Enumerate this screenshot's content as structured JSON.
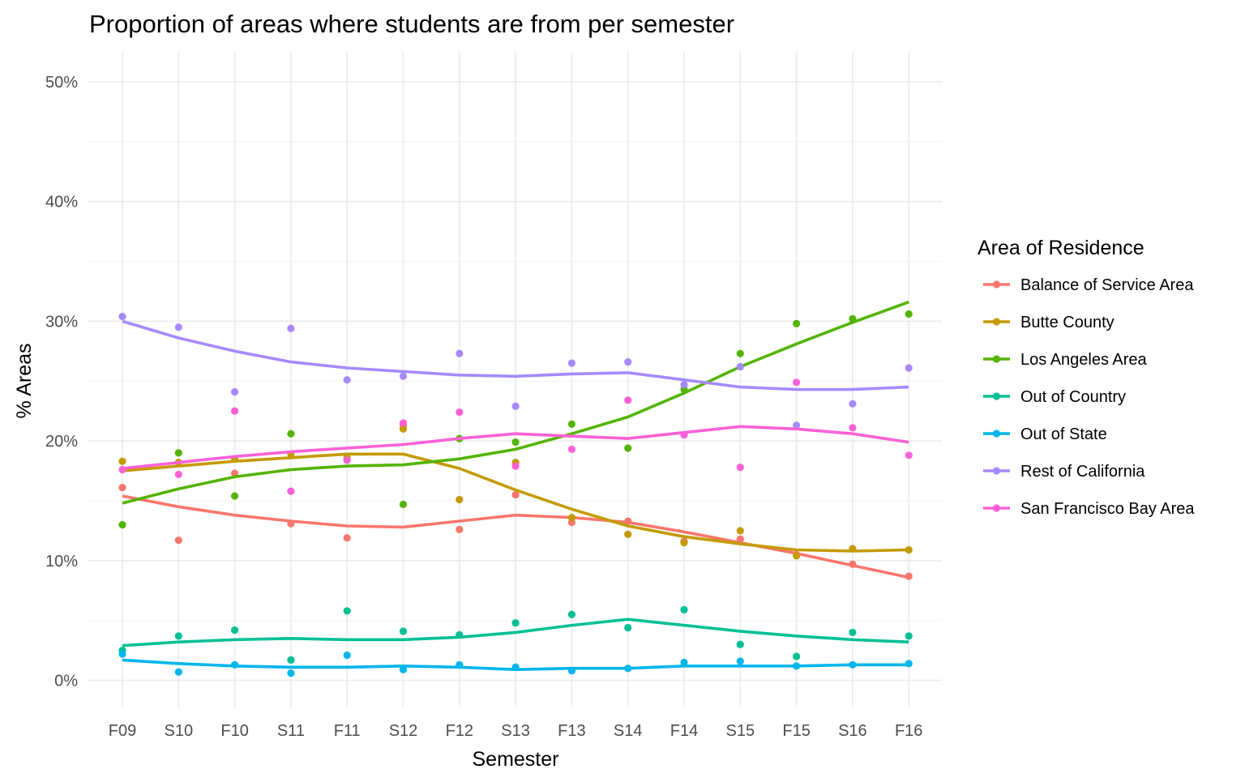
{
  "chart_data": {
    "type": "line",
    "title": "Proportion of areas where students are from per semester",
    "xlabel": "Semester",
    "ylabel": "% Areas",
    "categories": [
      "F09",
      "S10",
      "F10",
      "S11",
      "F11",
      "S12",
      "F12",
      "S13",
      "F13",
      "S14",
      "F14",
      "S15",
      "F15",
      "S16",
      "F16"
    ],
    "ylim": [
      -2.2,
      52.5
    ],
    "yticks": [
      0,
      10,
      20,
      30,
      40,
      50
    ],
    "ytick_labels": [
      "0%",
      "10%",
      "20%",
      "30%",
      "40%",
      "50%"
    ],
    "grid": true,
    "legend": {
      "title": "Area of Residence",
      "position": "right"
    },
    "series": [
      {
        "name": "Balance of Service Area",
        "color": "#F8766D",
        "points": [
          16.1,
          11.7,
          17.3,
          13.1,
          11.9,
          21.3,
          12.6,
          15.5,
          13.2,
          13.3,
          11.6,
          11.8,
          10.5,
          9.7,
          8.7
        ],
        "trend": [
          15.4,
          14.5,
          13.8,
          13.3,
          12.9,
          12.8,
          13.3,
          13.8,
          13.6,
          13.2,
          12.4,
          11.5,
          10.6,
          9.6,
          8.6
        ]
      },
      {
        "name": "Butte County",
        "color": "#C49A00",
        "points": [
          18.3,
          18.2,
          18.5,
          18.9,
          18.6,
          21.0,
          15.1,
          18.2,
          13.6,
          12.2,
          11.5,
          12.5,
          10.4,
          11.0,
          10.9
        ],
        "trend": [
          17.5,
          17.9,
          18.3,
          18.6,
          18.9,
          18.9,
          17.7,
          15.9,
          14.3,
          12.9,
          12.0,
          11.4,
          10.9,
          10.8,
          10.9
        ]
      },
      {
        "name": "Los Angeles Area",
        "color": "#53B400",
        "points": [
          13.0,
          19.0,
          15.4,
          20.6,
          18.4,
          14.7,
          20.2,
          19.9,
          21.4,
          19.4,
          24.3,
          27.3,
          29.8,
          30.2,
          30.6
        ],
        "trend": [
          14.8,
          16.0,
          17.0,
          17.6,
          17.9,
          18.0,
          18.5,
          19.3,
          20.6,
          22.0,
          24.0,
          26.2,
          28.1,
          29.9,
          31.6
        ]
      },
      {
        "name": "Out of Country",
        "color": "#00C094",
        "points": [
          2.5,
          3.7,
          4.2,
          1.7,
          5.8,
          4.1,
          3.8,
          4.8,
          5.5,
          4.4,
          5.9,
          3.0,
          2.0,
          4.0,
          3.7
        ],
        "trend": [
          2.9,
          3.2,
          3.4,
          3.5,
          3.4,
          3.4,
          3.6,
          4.0,
          4.6,
          5.1,
          4.6,
          4.1,
          3.7,
          3.4,
          3.2
        ]
      },
      {
        "name": "Out of State",
        "color": "#00B6EB",
        "points": [
          2.2,
          0.7,
          1.3,
          0.6,
          2.1,
          0.9,
          1.3,
          1.1,
          0.8,
          1.0,
          1.5,
          1.6,
          1.2,
          1.3,
          1.4
        ],
        "trend": [
          1.7,
          1.4,
          1.2,
          1.1,
          1.1,
          1.2,
          1.1,
          0.9,
          1.0,
          1.0,
          1.2,
          1.2,
          1.2,
          1.3,
          1.3
        ]
      },
      {
        "name": "Rest of California",
        "color": "#A58AFF",
        "points": [
          30.4,
          29.5,
          24.1,
          29.4,
          25.1,
          25.4,
          27.3,
          22.9,
          26.5,
          26.6,
          24.7,
          26.2,
          21.3,
          23.1,
          26.1
        ],
        "trend": [
          30.0,
          28.6,
          27.5,
          26.6,
          26.1,
          25.8,
          25.5,
          25.4,
          25.6,
          25.7,
          25.1,
          24.5,
          24.3,
          24.3,
          24.5
        ]
      },
      {
        "name": "San Francisco Bay Area",
        "color": "#FB61D7",
        "points": [
          17.6,
          17.2,
          22.5,
          15.8,
          18.4,
          21.5,
          22.4,
          17.9,
          19.3,
          23.4,
          20.5,
          17.8,
          24.9,
          21.1,
          18.8
        ],
        "trend": [
          17.7,
          18.2,
          18.7,
          19.1,
          19.4,
          19.7,
          20.2,
          20.6,
          20.4,
          20.2,
          20.7,
          21.2,
          21.0,
          20.6,
          19.9
        ]
      }
    ]
  }
}
